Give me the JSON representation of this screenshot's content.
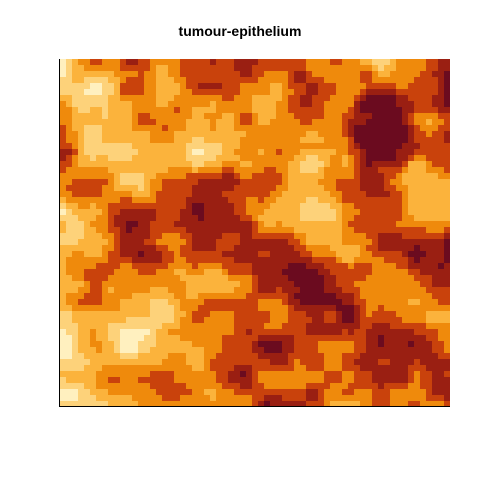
{
  "image": {
    "title": "tumour-epithelium",
    "description_palette": [
      "#6b0b1f",
      "#9a1f12",
      "#c9420c",
      "#ef8a0c",
      "#fbb33c",
      "#fdd27a",
      "#fff0bf"
    ],
    "texture": "tumour-epithelium-heatmap"
  }
}
